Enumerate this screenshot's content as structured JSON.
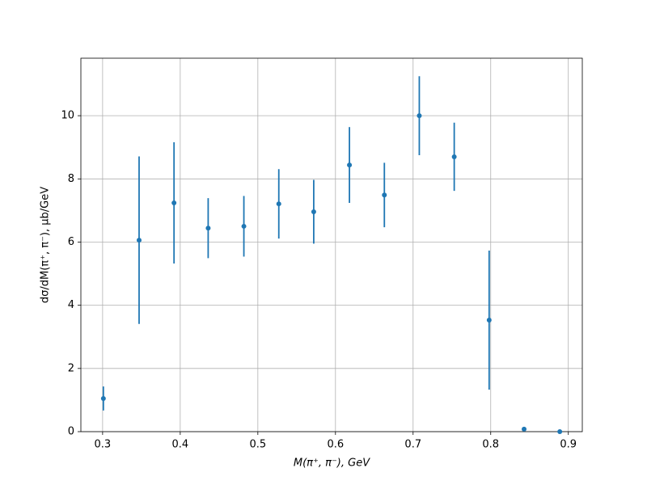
{
  "chart_data": {
    "type": "errorbar",
    "x_label": "M(π⁺, π⁻), GeV",
    "y_label": "dσ/dM(π⁺, π⁻), μb/GeV",
    "x": [
      0.301,
      0.347,
      0.392,
      0.436,
      0.482,
      0.527,
      0.572,
      0.618,
      0.663,
      0.708,
      0.753,
      0.798,
      0.843,
      0.889
    ],
    "series": [
      {
        "color": "#1f77b4",
        "values": [
          1.05,
          6.06,
          7.24,
          6.44,
          6.5,
          7.21,
          6.96,
          8.44,
          7.49,
          10.0,
          8.7,
          3.53,
          0.08,
          0.0
        ],
        "errors": [
          0.38,
          2.65,
          1.92,
          0.95,
          0.96,
          1.1,
          1.01,
          1.2,
          1.02,
          1.25,
          1.08,
          2.2,
          0.03,
          0.01
        ]
      }
    ],
    "xlim": [
      0.272,
      0.918
    ],
    "ylim": [
      0,
      11.82
    ],
    "xticks": [
      0.3,
      0.4,
      0.5,
      0.6,
      0.7,
      0.8,
      0.9
    ],
    "yticks": [
      0,
      2,
      4,
      6,
      8,
      10
    ],
    "grid": true
  }
}
